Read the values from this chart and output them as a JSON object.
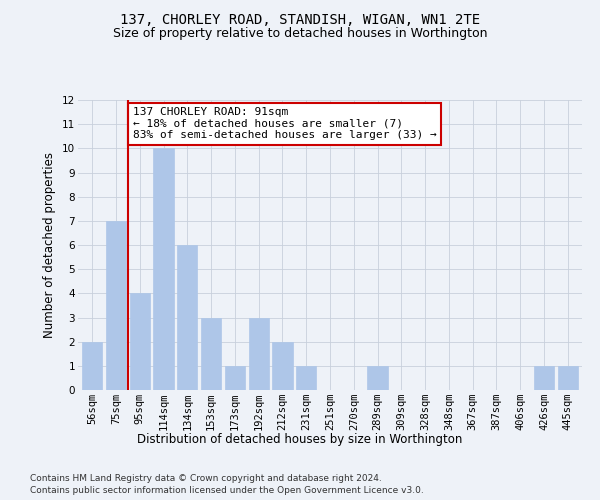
{
  "title": "137, CHORLEY ROAD, STANDISH, WIGAN, WN1 2TE",
  "subtitle": "Size of property relative to detached houses in Worthington",
  "xlabel": "Distribution of detached houses by size in Worthington",
  "ylabel": "Number of detached properties",
  "categories": [
    "56sqm",
    "75sqm",
    "95sqm",
    "114sqm",
    "134sqm",
    "153sqm",
    "173sqm",
    "192sqm",
    "212sqm",
    "231sqm",
    "251sqm",
    "270sqm",
    "289sqm",
    "309sqm",
    "328sqm",
    "348sqm",
    "367sqm",
    "387sqm",
    "406sqm",
    "426sqm",
    "445sqm"
  ],
  "values": [
    2,
    7,
    4,
    10,
    6,
    3,
    1,
    3,
    2,
    1,
    0,
    0,
    1,
    0,
    0,
    0,
    0,
    0,
    0,
    1,
    1
  ],
  "bar_color": "#aec6e8",
  "property_line_x": 1.5,
  "annotation_text": "137 CHORLEY ROAD: 91sqm\n← 18% of detached houses are smaller (7)\n83% of semi-detached houses are larger (33) →",
  "annotation_box_color": "#ffffff",
  "annotation_box_edgecolor": "#cc0000",
  "vline_color": "#cc0000",
  "ylim": [
    0,
    12
  ],
  "yticks": [
    0,
    1,
    2,
    3,
    4,
    5,
    6,
    7,
    8,
    9,
    10,
    11,
    12
  ],
  "footer1": "Contains HM Land Registry data © Crown copyright and database right 2024.",
  "footer2": "Contains public sector information licensed under the Open Government Licence v3.0.",
  "background_color": "#eef2f8",
  "grid_color": "#c8d0dc",
  "title_fontsize": 10,
  "subtitle_fontsize": 9,
  "axis_label_fontsize": 8.5,
  "tick_fontsize": 7.5,
  "annotation_fontsize": 8,
  "footer_fontsize": 6.5
}
